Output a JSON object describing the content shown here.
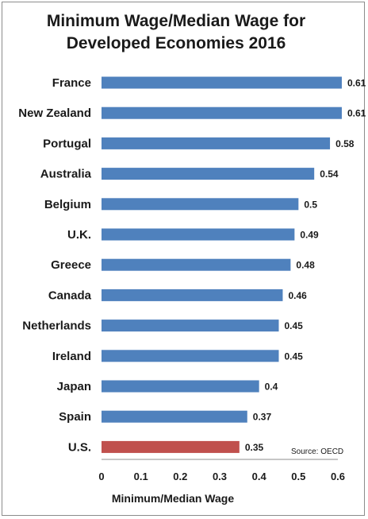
{
  "chart_data": {
    "type": "bar",
    "orientation": "horizontal",
    "title_lines": [
      "Minimum Wage/Median Wage for",
      "Developed Economies 2016"
    ],
    "categories": [
      "France",
      "New Zealand",
      "Portugal",
      "Australia",
      "Belgium",
      "U.K.",
      "Greece",
      "Canada",
      "Netherlands",
      "Ireland",
      "Japan",
      "Spain",
      "U.S."
    ],
    "values": [
      0.61,
      0.61,
      0.58,
      0.54,
      0.5,
      0.49,
      0.48,
      0.46,
      0.45,
      0.45,
      0.4,
      0.37,
      0.35
    ],
    "value_labels": [
      "0.61",
      "0.61",
      "0.58",
      "0.54",
      "0.5",
      "0.49",
      "0.48",
      "0.46",
      "0.45",
      "0.45",
      "0.4",
      "0.37",
      "0.35"
    ],
    "xlim": [
      0,
      0.6
    ],
    "xticks": [
      "0",
      "0.1",
      "0.2",
      "0.3",
      "0.4",
      "0.5",
      "0.6"
    ],
    "xlabel": "Minimum/Median Wage",
    "ylabel": "",
    "grid": false,
    "colors": {
      "default": "#4f81bd",
      "highlight": "#c0504d"
    },
    "highlight_category": "U.S.",
    "source": "Source: OECD"
  }
}
